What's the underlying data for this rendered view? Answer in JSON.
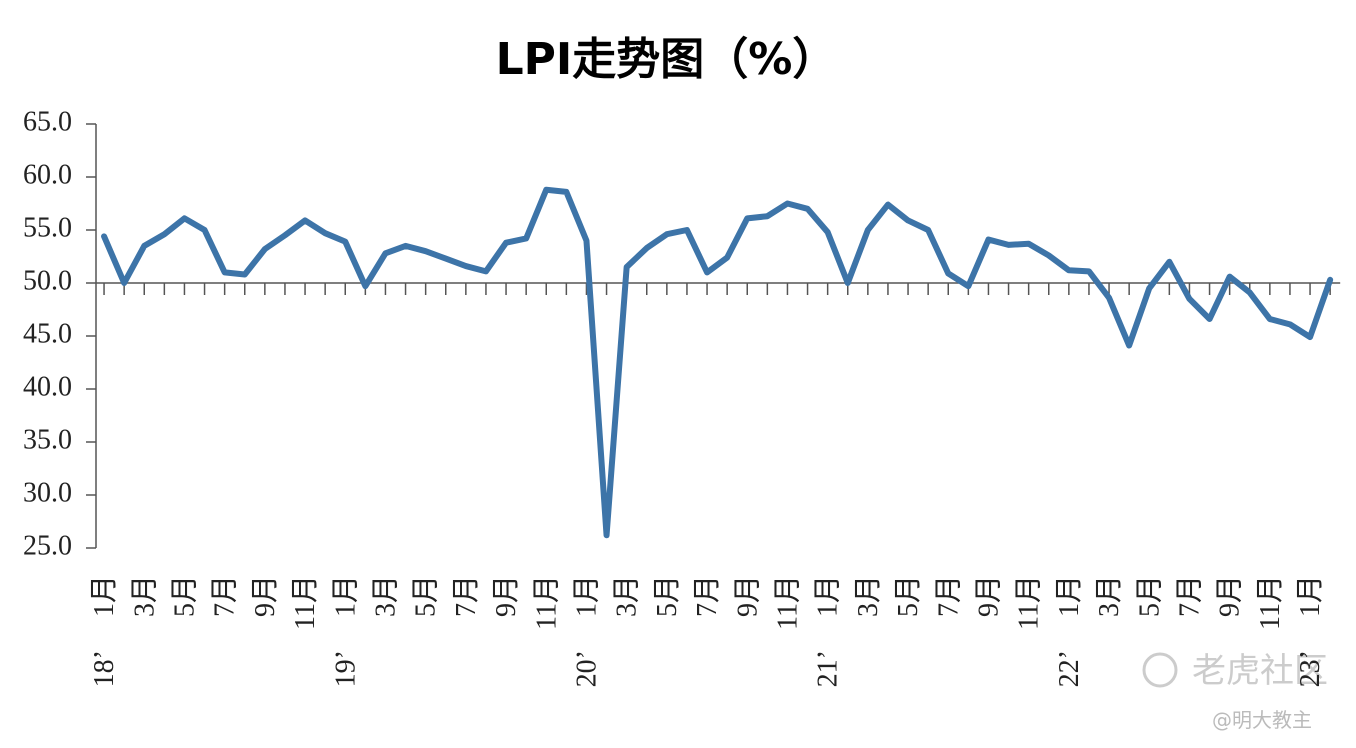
{
  "chart_data": {
    "type": "line",
    "title": "LPI走势图（%）",
    "categories": [
      "1月",
      null,
      "3月",
      null,
      "5月",
      null,
      "7月",
      null,
      "9月",
      null,
      "11月",
      null,
      "1月",
      null,
      "3月",
      null,
      "5月",
      null,
      "7月",
      null,
      "9月",
      null,
      "11月",
      null,
      "1月",
      null,
      "3月",
      null,
      "5月",
      null,
      "7月",
      null,
      "9月",
      null,
      "11月",
      null,
      "1月",
      null,
      "3月",
      null,
      "5月",
      null,
      "7月",
      null,
      "9月",
      null,
      "11月",
      null,
      "1月",
      null,
      "3月",
      null,
      "5月",
      null,
      "7月",
      null,
      "9月",
      null,
      "11月",
      null,
      "1月",
      null
    ],
    "year_labels": [
      "18’",
      null,
      null,
      null,
      null,
      null,
      null,
      null,
      null,
      null,
      null,
      null,
      "19’",
      null,
      null,
      null,
      null,
      null,
      null,
      null,
      null,
      null,
      null,
      null,
      "20’",
      null,
      null,
      null,
      null,
      null,
      null,
      null,
      null,
      null,
      null,
      null,
      "21’",
      null,
      null,
      null,
      null,
      null,
      null,
      null,
      null,
      null,
      null,
      null,
      "22’",
      null,
      null,
      null,
      null,
      null,
      null,
      null,
      null,
      null,
      null,
      null,
      "23’",
      null
    ],
    "series": [
      {
        "name": "LPI",
        "color": "#3d74a8",
        "values": [
          54.4,
          50.0,
          53.5,
          54.6,
          56.1,
          55.0,
          51.0,
          50.8,
          53.2,
          54.5,
          55.9,
          54.7,
          53.9,
          49.7,
          52.8,
          53.5,
          53.0,
          52.3,
          51.6,
          51.1,
          53.8,
          54.2,
          58.8,
          58.6,
          54.0,
          26.2,
          51.5,
          53.3,
          54.6,
          55.0,
          51.0,
          52.4,
          56.1,
          56.3,
          57.5,
          57.0,
          54.8,
          50.0,
          55.0,
          57.4,
          55.9,
          55.0,
          50.9,
          49.7,
          54.1,
          53.6,
          53.7,
          52.6,
          51.2,
          51.1,
          48.6,
          44.1,
          49.5,
          52.0,
          48.5,
          46.6,
          50.6,
          49.1,
          46.6,
          46.1,
          44.9,
          50.3
        ]
      }
    ],
    "ylim": [
      25,
      65
    ],
    "yticks": [
      {
        "value": 25,
        "label": "25.0"
      },
      {
        "value": 30,
        "label": "30.0"
      },
      {
        "value": 35,
        "label": "35.0"
      },
      {
        "value": 40,
        "label": "40.0"
      },
      {
        "value": 45,
        "label": "45.0"
      },
      {
        "value": 50,
        "label": "50.0"
      },
      {
        "value": 55,
        "label": "55.0"
      },
      {
        "value": 60,
        "label": "60.0"
      },
      {
        "value": 65,
        "label": "65.0"
      }
    ],
    "xaxis_crosses": 50,
    "watermarks": [
      "老虎社区",
      "@明大教主"
    ]
  }
}
